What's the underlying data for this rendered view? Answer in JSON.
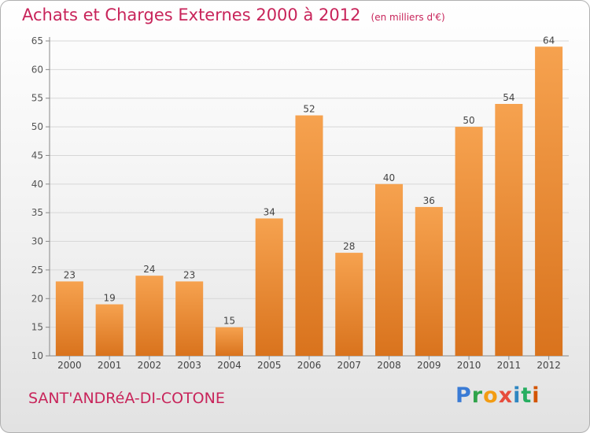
{
  "colors": {
    "accent": "#c8245a",
    "bar_top": "#f6a24f",
    "bar_bottom": "#d9731d",
    "grid": "#d7d7d7",
    "axis": "#888888"
  },
  "commune": "SANT'ANDRéA-DI-COTONE",
  "logo": {
    "letters": [
      "P",
      "r",
      "o",
      "x",
      "i",
      "t",
      "i"
    ],
    "colors": [
      "#3a7bd5",
      "#2fa34a",
      "#f39c12",
      "#e74c3c",
      "#2e86c1",
      "#27ae60",
      "#d35400"
    ]
  },
  "chart_data": {
    "type": "bar",
    "title": "Achats et Charges Externes 2000 à 2012",
    "unit_label": "(en milliers d'€)",
    "categories": [
      "2000",
      "2001",
      "2002",
      "2003",
      "2004",
      "2005",
      "2006",
      "2007",
      "2008",
      "2009",
      "2010",
      "2011",
      "2012"
    ],
    "values": [
      23,
      19,
      24,
      23,
      15,
      34,
      52,
      28,
      40,
      36,
      50,
      54,
      64
    ],
    "ylim": [
      10,
      65
    ],
    "yticks": [
      10,
      15,
      20,
      25,
      30,
      35,
      40,
      45,
      50,
      55,
      60,
      65
    ],
    "grid": true,
    "xlabel": "",
    "ylabel": ""
  }
}
